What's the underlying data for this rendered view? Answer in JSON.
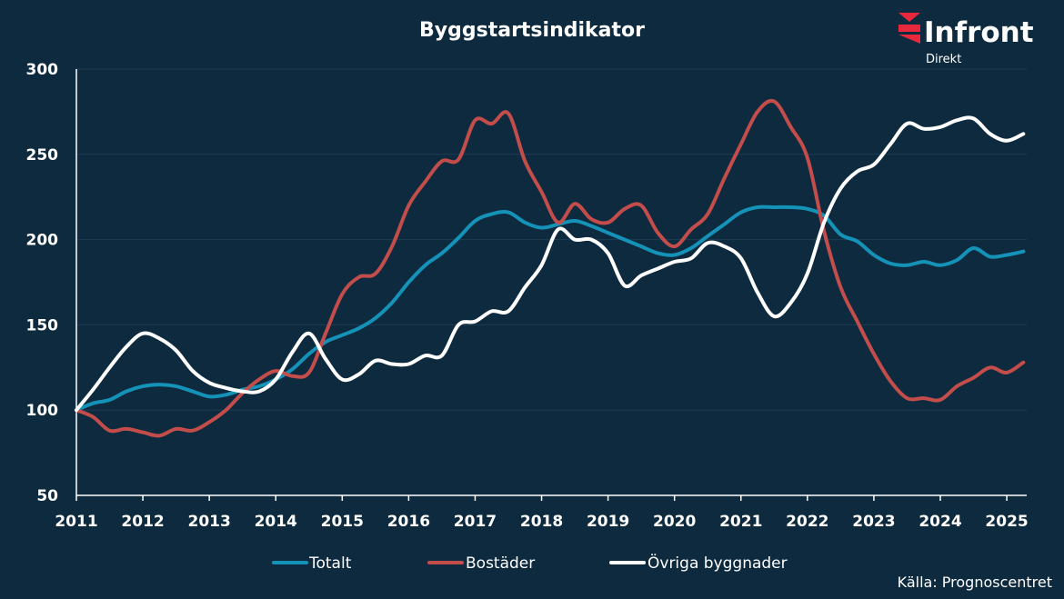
{
  "chart_data": {
    "type": "line",
    "title": "Byggstartsindikator",
    "xlabel": "",
    "ylabel": "",
    "xlim": [
      2011.0,
      2025.3
    ],
    "ylim": [
      50,
      300
    ],
    "yticks": [
      50,
      100,
      150,
      200,
      250,
      300
    ],
    "xticks": [
      "2011",
      "2012",
      "2013",
      "2014",
      "2015",
      "2016",
      "2017",
      "2018",
      "2019",
      "2020",
      "2021",
      "2022",
      "2023",
      "2024",
      "2025"
    ],
    "grid": true,
    "legend": "bottom",
    "source": "Källa: Prognoscentret",
    "series": [
      {
        "name": "Totalt",
        "color": "#1592b8",
        "x": [
          2011.0,
          2011.25,
          2011.5,
          2011.75,
          2012.0,
          2012.25,
          2012.5,
          2012.75,
          2013.0,
          2013.25,
          2013.5,
          2013.75,
          2014.0,
          2014.25,
          2014.5,
          2014.75,
          2015.0,
          2015.25,
          2015.5,
          2015.75,
          2016.0,
          2016.25,
          2016.5,
          2016.75,
          2017.0,
          2017.25,
          2017.5,
          2017.75,
          2018.0,
          2018.25,
          2018.5,
          2018.75,
          2019.0,
          2019.25,
          2019.5,
          2019.75,
          2020.0,
          2020.25,
          2020.5,
          2020.75,
          2021.0,
          2021.25,
          2021.5,
          2021.75,
          2022.0,
          2022.25,
          2022.5,
          2022.75,
          2023.0,
          2023.25,
          2023.5,
          2023.75,
          2024.0,
          2024.25,
          2024.5,
          2024.75,
          2025.0,
          2025.25
        ],
        "values": [
          100,
          104,
          106,
          111,
          114,
          115,
          114,
          111,
          108,
          109,
          112,
          114,
          118,
          124,
          133,
          140,
          144,
          148,
          154,
          163,
          175,
          185,
          192,
          201,
          211,
          215,
          216,
          210,
          207,
          209,
          211,
          208,
          204,
          200,
          196,
          192,
          191,
          195,
          202,
          209,
          216,
          219,
          219,
          219,
          218,
          214,
          203,
          199,
          191,
          186,
          185,
          187,
          185,
          188,
          195,
          190,
          191,
          193
        ]
      },
      {
        "name": "Bostäder",
        "color": "#c24d4b",
        "x": [
          2011.0,
          2011.25,
          2011.5,
          2011.75,
          2012.0,
          2012.25,
          2012.5,
          2012.75,
          2013.0,
          2013.25,
          2013.5,
          2013.75,
          2014.0,
          2014.25,
          2014.5,
          2014.75,
          2015.0,
          2015.25,
          2015.5,
          2015.75,
          2016.0,
          2016.25,
          2016.5,
          2016.75,
          2017.0,
          2017.25,
          2017.5,
          2017.75,
          2018.0,
          2018.25,
          2018.5,
          2018.75,
          2019.0,
          2019.25,
          2019.5,
          2019.75,
          2020.0,
          2020.25,
          2020.5,
          2020.75,
          2021.0,
          2021.25,
          2021.5,
          2021.75,
          2022.0,
          2022.25,
          2022.5,
          2022.75,
          2023.0,
          2023.25,
          2023.5,
          2023.75,
          2024.0,
          2024.25,
          2024.5,
          2024.75,
          2025.0,
          2025.25
        ],
        "values": [
          100,
          96,
          88,
          89,
          87,
          85,
          89,
          88,
          93,
          100,
          110,
          118,
          123,
          120,
          122,
          145,
          168,
          178,
          180,
          196,
          220,
          234,
          246,
          247,
          270,
          268,
          274,
          246,
          228,
          210,
          221,
          212,
          210,
          218,
          220,
          204,
          196,
          206,
          215,
          236,
          256,
          275,
          281,
          266,
          248,
          205,
          172,
          152,
          133,
          117,
          107,
          107,
          106,
          114,
          119,
          125,
          122,
          128
        ]
      },
      {
        "name": "Övriga byggnader",
        "color": "#ffffff",
        "x": [
          2011.0,
          2011.25,
          2011.5,
          2011.75,
          2012.0,
          2012.25,
          2012.5,
          2012.75,
          2013.0,
          2013.25,
          2013.5,
          2013.75,
          2014.0,
          2014.25,
          2014.5,
          2014.75,
          2015.0,
          2015.25,
          2015.5,
          2015.75,
          2016.0,
          2016.25,
          2016.5,
          2016.75,
          2017.0,
          2017.25,
          2017.5,
          2017.75,
          2018.0,
          2018.25,
          2018.5,
          2018.75,
          2019.0,
          2019.25,
          2019.5,
          2019.75,
          2020.0,
          2020.25,
          2020.5,
          2020.75,
          2021.0,
          2021.25,
          2021.5,
          2021.75,
          2022.0,
          2022.25,
          2022.5,
          2022.75,
          2023.0,
          2023.25,
          2023.5,
          2023.75,
          2024.0,
          2024.25,
          2024.5,
          2024.75,
          2025.0,
          2025.25
        ],
        "values": [
          100,
          112,
          125,
          137,
          145,
          142,
          135,
          123,
          116,
          113,
          111,
          111,
          118,
          134,
          145,
          130,
          118,
          121,
          129,
          127,
          127,
          132,
          132,
          150,
          152,
          158,
          158,
          172,
          185,
          206,
          200,
          200,
          192,
          173,
          179,
          183,
          187,
          189,
          198,
          196,
          189,
          169,
          155,
          163,
          180,
          210,
          230,
          240,
          244,
          256,
          268,
          265,
          266,
          270,
          271,
          262,
          258,
          262
        ]
      }
    ]
  },
  "logo": {
    "name": "Infront",
    "sub": "Direkt"
  }
}
